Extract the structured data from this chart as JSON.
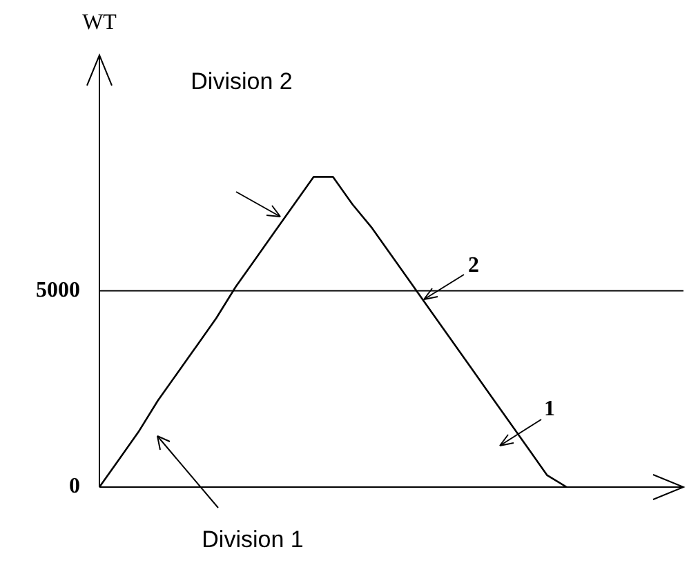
{
  "chart_data": {
    "type": "line",
    "ylabel": "WT",
    "categories": [
      null,
      null,
      null,
      null,
      null,
      null,
      null,
      null,
      null,
      null,
      null,
      null,
      null,
      null,
      null,
      null,
      null,
      null,
      null,
      null,
      null,
      null,
      null,
      null,
      null,
      null,
      null,
      null,
      null,
      null,
      null
    ],
    "series": [
      {
        "color": "#000000",
        "values": [
          0,
          700,
          1400,
          2200,
          2900,
          3600,
          4300,
          5100,
          5800,
          6500,
          7200,
          7900,
          7900,
          7200,
          6600,
          5900,
          5200,
          4500,
          3800,
          3100,
          2400,
          1700,
          1000,
          300,
          0,
          null,
          null,
          null,
          null,
          null,
          null
        ]
      }
    ],
    "ylim": [
      0,
      11000
    ],
    "yticks": [
      0,
      5000
    ],
    "tick_labels": "y",
    "grid": false,
    "legend": false,
    "ref_lines": [
      {
        "axis": "y",
        "value": 5000,
        "color": "#000000"
      }
    ],
    "annotations": [
      "Division 2",
      "2",
      "1",
      "Division 1"
    ]
  }
}
